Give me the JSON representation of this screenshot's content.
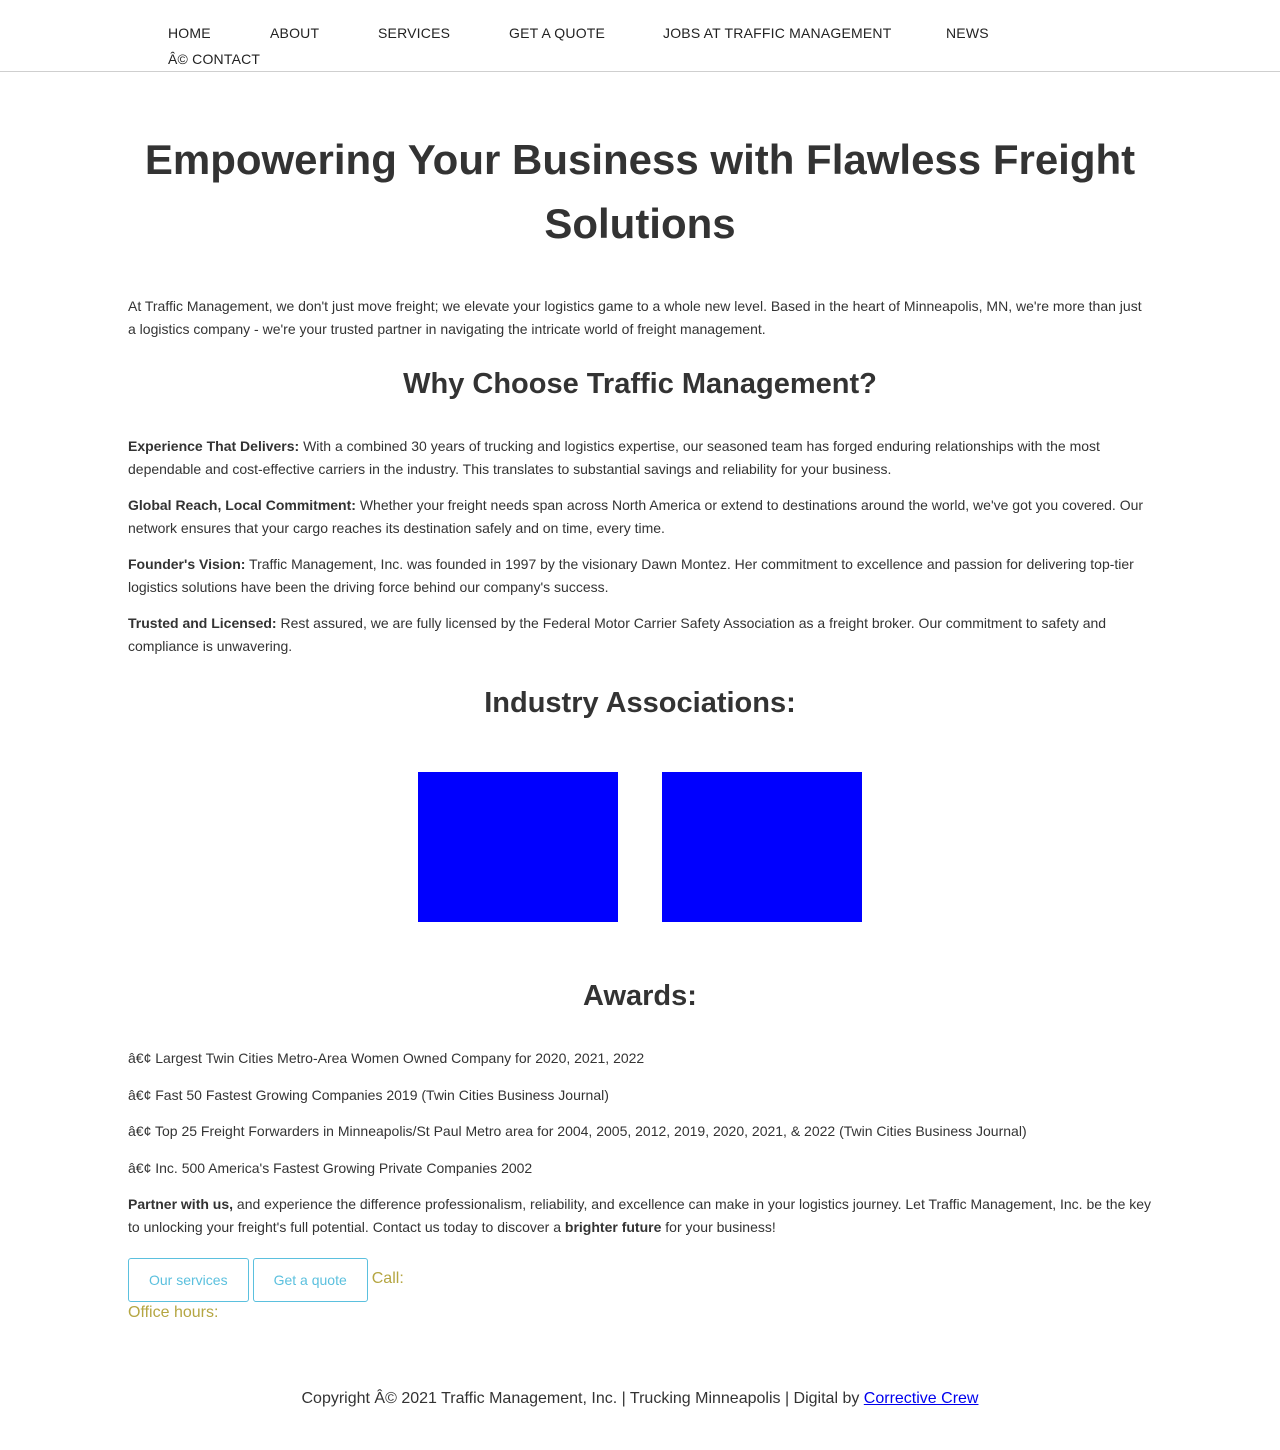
{
  "nav": {
    "items": [
      {
        "label": "HOME"
      },
      {
        "label": "ABOUT"
      },
      {
        "label": "SERVICES"
      },
      {
        "label": "GET A QUOTE"
      },
      {
        "label": "JOBS AT TRAFFIC MANAGEMENT"
      },
      {
        "label": "NEWS"
      },
      {
        "label": "Â© CONTACT"
      }
    ]
  },
  "hero": {
    "title": "Empowering Your Business with Flawless Freight Solutions",
    "intro": "At Traffic Management, we don't just move freight; we elevate your logistics game to a whole new level. Based in the heart of Minneapolis, MN, we're more than just a logistics company - we're your trusted partner in navigating the intricate world of freight management."
  },
  "why": {
    "heading": "Why Choose Traffic Management?",
    "points": [
      {
        "title": "Experience That Delivers:",
        "text": " With a combined 30 years of trucking and logistics expertise, our seasoned team has forged enduring relationships with the most dependable and cost-effective carriers in the industry. This translates to substantial savings and reliability for your business."
      },
      {
        "title": "Global Reach, Local Commitment:",
        "text": " Whether your freight needs span across North America or extend to destinations around the world, we've got you covered. Our network ensures that your cargo reaches its destination safely and on time, every time."
      },
      {
        "title": "Founder's Vision:",
        "text": " Traffic Management, Inc. was founded in 1997 by the visionary Dawn Montez. Her commitment to excellence and passion for delivering top-tier logistics solutions have been the driving force behind our company's success."
      },
      {
        "title": "Trusted and Licensed:",
        "text": " Rest assured, we are fully licensed by the Federal Motor Carrier Safety Association as a freight broker. Our commitment to safety and compliance is unwavering."
      }
    ]
  },
  "associations": {
    "heading": "Industry Associations:",
    "logo_color": "#0000ff"
  },
  "awards": {
    "heading": "Awards:",
    "items": [
      "â€¢ Largest Twin Cities Metro-Area Women Owned Company for 2020, 2021, 2022",
      "â€¢ Fast 50 Fastest Growing Companies 2019 (Twin Cities Business Journal)",
      "â€¢ Top 25 Freight Forwarders in Minneapolis/St Paul Metro area for 2004, 2005, 2012, 2019, 2020, 2021, & 2022 (Twin Cities Business Journal)",
      "â€¢ Inc. 500 America's Fastest Growing Private Companies 2002"
    ]
  },
  "partner": {
    "bold1": "Partner with us,",
    "text1": " and experience the difference professionalism, reliability, and excellence can make in your logistics journey. Let Traffic Management, Inc. be the key to unlocking your freight's full potential. Contact us today to discover a ",
    "bold2": "brighter future",
    "text2": " for your business!"
  },
  "cta": {
    "services_label": "Our services",
    "quote_label": "Get a quote",
    "call_label": "Call:",
    "hours_label": "Office hours:"
  },
  "footer": {
    "text": "Copyright Â© 2021 Traffic Management, Inc. | Trucking Minneapolis | Digital by ",
    "link_label": "Corrective Crew"
  },
  "colors": {
    "button_accent": "#5bc0de",
    "contact_text": "#b5a642",
    "link": "#0000ee"
  }
}
